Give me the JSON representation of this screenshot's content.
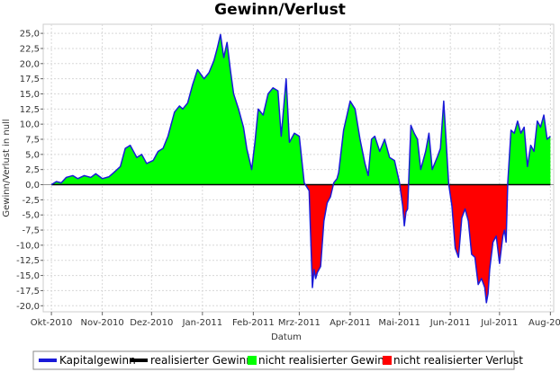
{
  "chart_data": {
    "type": "area",
    "title": "Gewinn/Verlust",
    "xlabel": "Datum",
    "ylabel": "Gewinn/Verlust in null",
    "ylim": [
      -21,
      26.5
    ],
    "xlim": [
      "2010-09-26",
      "2011-08-03"
    ],
    "grid": true,
    "legend_position": "bottom",
    "x_ticks": [
      {
        "date": "2010-10-01",
        "label": "Okt-2010"
      },
      {
        "date": "2010-11-01",
        "label": "Nov-2010"
      },
      {
        "date": "2010-12-01",
        "label": "Dez-2010"
      },
      {
        "date": "2011-01-01",
        "label": "Jan-2011"
      },
      {
        "date": "2011-02-01",
        "label": "Feb-2011"
      },
      {
        "date": "2011-03-01",
        "label": "Mrz-2011"
      },
      {
        "date": "2011-04-01",
        "label": "Apr-2011"
      },
      {
        "date": "2011-05-01",
        "label": "Mai-2011"
      },
      {
        "date": "2011-06-01",
        "label": "Jun-2011"
      },
      {
        "date": "2011-07-01",
        "label": "Jul-2011"
      },
      {
        "date": "2011-08-01",
        "label": "Aug-2011"
      }
    ],
    "y_ticks": [
      {
        "value": 25,
        "label": "25,0"
      },
      {
        "value": 22.5,
        "label": "22,5"
      },
      {
        "value": 20,
        "label": "20,0"
      },
      {
        "value": 17.5,
        "label": "17,5"
      },
      {
        "value": 15,
        "label": "15,0"
      },
      {
        "value": 12.5,
        "label": "12,5"
      },
      {
        "value": 10,
        "label": "10,0"
      },
      {
        "value": 7.5,
        "label": "7,5"
      },
      {
        "value": 5,
        "label": "5,0"
      },
      {
        "value": 2.5,
        "label": "2,5"
      },
      {
        "value": 0,
        "label": "0,0"
      },
      {
        "value": -2.5,
        "label": "-2,5"
      },
      {
        "value": -5,
        "label": "-5,0"
      },
      {
        "value": -7.5,
        "label": "-7,5"
      },
      {
        "value": -10,
        "label": "-10,0"
      },
      {
        "value": -12.5,
        "label": "-12,5"
      },
      {
        "value": -15,
        "label": "-15,0"
      },
      {
        "value": -17.5,
        "label": "-17,5"
      },
      {
        "value": -20,
        "label": "-20,0"
      }
    ],
    "series": [
      {
        "name": "Kapitalgewinn",
        "color": "#1a1ad8",
        "role": "line"
      },
      {
        "name": "realisierter Gewinn",
        "color": "#000000",
        "role": "line"
      },
      {
        "name": "nicht realisierter Gewinn",
        "color": "#00ff00",
        "role": "positive-area"
      },
      {
        "name": "nicht realisierter Verlust",
        "color": "#ff0000",
        "role": "negative-area"
      }
    ],
    "kapitalgewinn": {
      "x": [
        "2010-10-01",
        "2010-10-04",
        "2010-10-07",
        "2010-10-10",
        "2010-10-14",
        "2010-10-17",
        "2010-10-21",
        "2010-10-25",
        "2010-10-28",
        "2010-11-01",
        "2010-11-05",
        "2010-11-08",
        "2010-11-12",
        "2010-11-15",
        "2010-11-18",
        "2010-11-22",
        "2010-11-25",
        "2010-11-28",
        "2010-12-02",
        "2010-12-05",
        "2010-12-08",
        "2010-12-11",
        "2010-12-15",
        "2010-12-18",
        "2010-12-20",
        "2010-12-23",
        "2010-12-26",
        "2010-12-29",
        "2011-01-02",
        "2011-01-05",
        "2011-01-08",
        "2011-01-10",
        "2011-01-12",
        "2011-01-14",
        "2011-01-16",
        "2011-01-18",
        "2011-01-20",
        "2011-01-23",
        "2011-01-26",
        "2011-01-28",
        "2011-01-31",
        "2011-02-02",
        "2011-02-04",
        "2011-02-07",
        "2011-02-10",
        "2011-02-13",
        "2011-02-16",
        "2011-02-18",
        "2011-02-21",
        "2011-02-23",
        "2011-02-26",
        "2011-03-01",
        "2011-03-04",
        "2011-03-07",
        "2011-03-09",
        "2011-03-10",
        "2011-03-11",
        "2011-03-12",
        "2011-03-14",
        "2011-03-16",
        "2011-03-18",
        "2011-03-20",
        "2011-03-22",
        "2011-03-24",
        "2011-03-25",
        "2011-03-28",
        "2011-04-01",
        "2011-04-04",
        "2011-04-07",
        "2011-04-10",
        "2011-04-12",
        "2011-04-14",
        "2011-04-16",
        "2011-04-19",
        "2011-04-22",
        "2011-04-25",
        "2011-04-28",
        "2011-05-01",
        "2011-05-03",
        "2011-05-04",
        "2011-05-05",
        "2011-05-06",
        "2011-05-08",
        "2011-05-10",
        "2011-05-12",
        "2011-05-14",
        "2011-05-17",
        "2011-05-19",
        "2011-05-21",
        "2011-05-24",
        "2011-05-26",
        "2011-05-28",
        "2011-05-31",
        "2011-06-02",
        "2011-06-04",
        "2011-06-06",
        "2011-06-08",
        "2011-06-10",
        "2011-06-12",
        "2011-06-14",
        "2011-06-16",
        "2011-06-18",
        "2011-06-20",
        "2011-06-22",
        "2011-06-23",
        "2011-06-24",
        "2011-06-25",
        "2011-06-27",
        "2011-06-29",
        "2011-07-01",
        "2011-07-03",
        "2011-07-04",
        "2011-07-05",
        "2011-07-06",
        "2011-07-08",
        "2011-07-10",
        "2011-07-12",
        "2011-07-14",
        "2011-07-16",
        "2011-07-18",
        "2011-07-20",
        "2011-07-22",
        "2011-07-24",
        "2011-07-26",
        "2011-07-28",
        "2011-07-30",
        "2011-08-01"
      ],
      "y": [
        0,
        0.5,
        0.3,
        1.2,
        1.5,
        1.0,
        1.5,
        1.2,
        1.8,
        1.0,
        1.3,
        2.0,
        3.0,
        6.0,
        6.5,
        4.5,
        5.0,
        3.5,
        4.0,
        5.5,
        6.0,
        8.0,
        12.0,
        13.0,
        12.5,
        13.5,
        16.5,
        19.0,
        17.5,
        18.5,
        20.5,
        22.5,
        24.8,
        21.0,
        23.5,
        19.0,
        15.0,
        12.5,
        9.5,
        6.0,
        2.5,
        7.0,
        12.5,
        11.5,
        15.0,
        16.0,
        15.5,
        8.0,
        17.5,
        7.0,
        8.5,
        8.0,
        0.3,
        -1.0,
        -17.0,
        -14.0,
        -15.5,
        -14.5,
        -13.5,
        -6.0,
        -3.0,
        -2.0,
        0.3,
        1.0,
        2.0,
        9.0,
        13.8,
        12.5,
        7.5,
        3.5,
        1.5,
        7.5,
        8.0,
        5.5,
        7.5,
        4.5,
        4.0,
        0.4,
        -3.5,
        -6.8,
        -4.5,
        -4.0,
        9.8,
        8.5,
        7.5,
        2.5,
        5.5,
        8.5,
        2.5,
        4.5,
        6.0,
        13.8,
        0.2,
        -3.5,
        -10.5,
        -12.0,
        -5.5,
        -4.0,
        -6.0,
        -11.5,
        -12.0,
        -16.5,
        -15.5,
        -17.0,
        -19.5,
        -18.0,
        -14.0,
        -9.5,
        -8.5,
        -13.0,
        -8.5,
        -7.5,
        -9.5,
        0.2,
        9.0,
        8.5,
        10.5,
        8.5,
        9.5,
        3.0,
        6.5,
        5.5,
        10.5,
        9.5,
        11.5,
        7.5,
        8.0
      ]
    }
  },
  "legend": {
    "items": [
      {
        "label": "Kapitalgewinn",
        "color": "#1a1ad8"
      },
      {
        "label": "realisierter Gewinn",
        "color": "#000000"
      },
      {
        "label": "nicht realisierter Gewinn",
        "color": "#00ff00"
      },
      {
        "label": "nicht realisierter Verlust",
        "color": "#ff0000"
      }
    ]
  }
}
